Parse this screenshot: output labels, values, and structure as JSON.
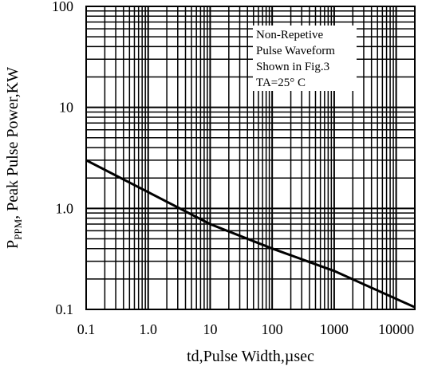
{
  "chart_data": {
    "type": "line",
    "x_scale": "log",
    "y_scale": "log",
    "xlim": [
      0.1,
      20000
    ],
    "ylim": [
      0.1,
      100
    ],
    "grid": true,
    "x_ticks": [
      "0.1",
      "1.0",
      "10",
      "100",
      "1000",
      "10000"
    ],
    "x_tick_values": [
      0.1,
      1,
      10,
      100,
      1000,
      10000
    ],
    "y_ticks": [
      "0.1",
      "1.0",
      "10",
      "100"
    ],
    "y_tick_values": [
      0.1,
      1,
      10,
      100
    ],
    "xlabel": "td,Pulse Width,µsec",
    "ylabel": {
      "prefix": "P",
      "subscript": "PPM",
      "rest": ", Peak Pulse Power,KW"
    },
    "annotation": [
      "Non-Repetive",
      "Pulse Waveform",
      "Shown in Fig.3",
      "TA=25° C"
    ],
    "series": [
      {
        "x": [
          0.1,
          1,
          10,
          100,
          1000,
          20000
        ],
        "y": [
          3.0,
          1.45,
          0.7,
          0.4,
          0.24,
          0.105
        ]
      }
    ]
  }
}
